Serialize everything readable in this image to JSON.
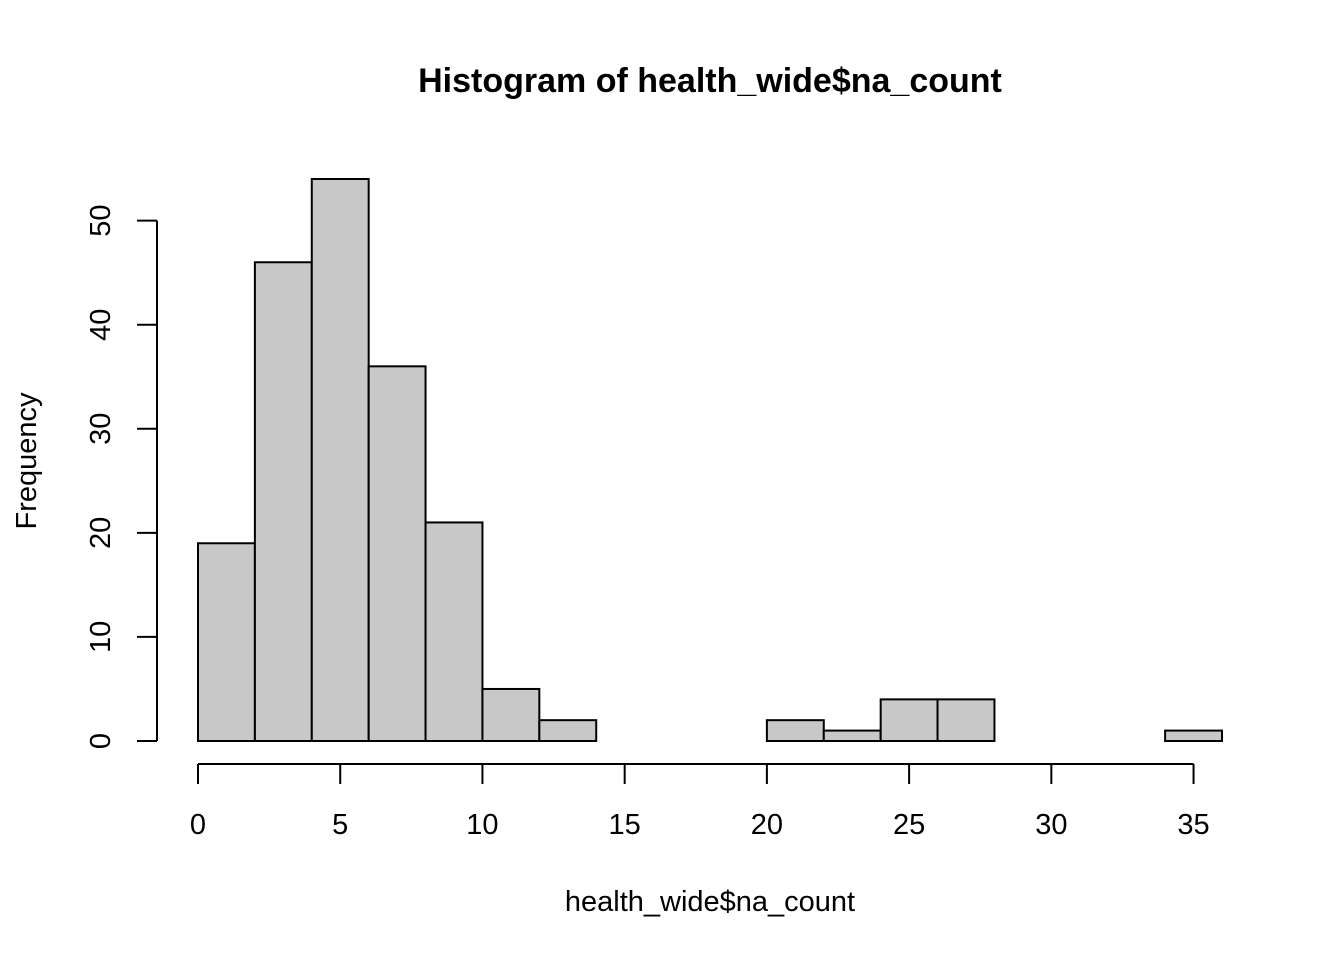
{
  "chart_data": {
    "type": "bar",
    "title": "Histogram of health_wide$na_count",
    "xlabel": "health_wide$na_count",
    "ylabel": "Frequency",
    "bins": [
      {
        "start": 0,
        "end": 2,
        "count": 19
      },
      {
        "start": 2,
        "end": 4,
        "count": 46
      },
      {
        "start": 4,
        "end": 6,
        "count": 54
      },
      {
        "start": 6,
        "end": 8,
        "count": 36
      },
      {
        "start": 8,
        "end": 10,
        "count": 21
      },
      {
        "start": 10,
        "end": 12,
        "count": 5
      },
      {
        "start": 12,
        "end": 14,
        "count": 2
      },
      {
        "start": 14,
        "end": 16,
        "count": 0
      },
      {
        "start": 16,
        "end": 18,
        "count": 0
      },
      {
        "start": 18,
        "end": 20,
        "count": 0
      },
      {
        "start": 20,
        "end": 22,
        "count": 2
      },
      {
        "start": 22,
        "end": 24,
        "count": 1
      },
      {
        "start": 24,
        "end": 26,
        "count": 4
      },
      {
        "start": 26,
        "end": 28,
        "count": 4
      },
      {
        "start": 28,
        "end": 30,
        "count": 0
      },
      {
        "start": 30,
        "end": 32,
        "count": 0
      },
      {
        "start": 32,
        "end": 34,
        "count": 0
      },
      {
        "start": 34,
        "end": 36,
        "count": 1
      }
    ],
    "x_ticks": [
      0,
      5,
      10,
      15,
      20,
      25,
      30,
      35
    ],
    "y_ticks": [
      0,
      10,
      20,
      30,
      40,
      50
    ],
    "xlim": [
      0,
      36
    ],
    "ylim": [
      0,
      54
    ],
    "grid": false,
    "bar_fill": "#c8c8c8",
    "bar_stroke": "#000000"
  }
}
